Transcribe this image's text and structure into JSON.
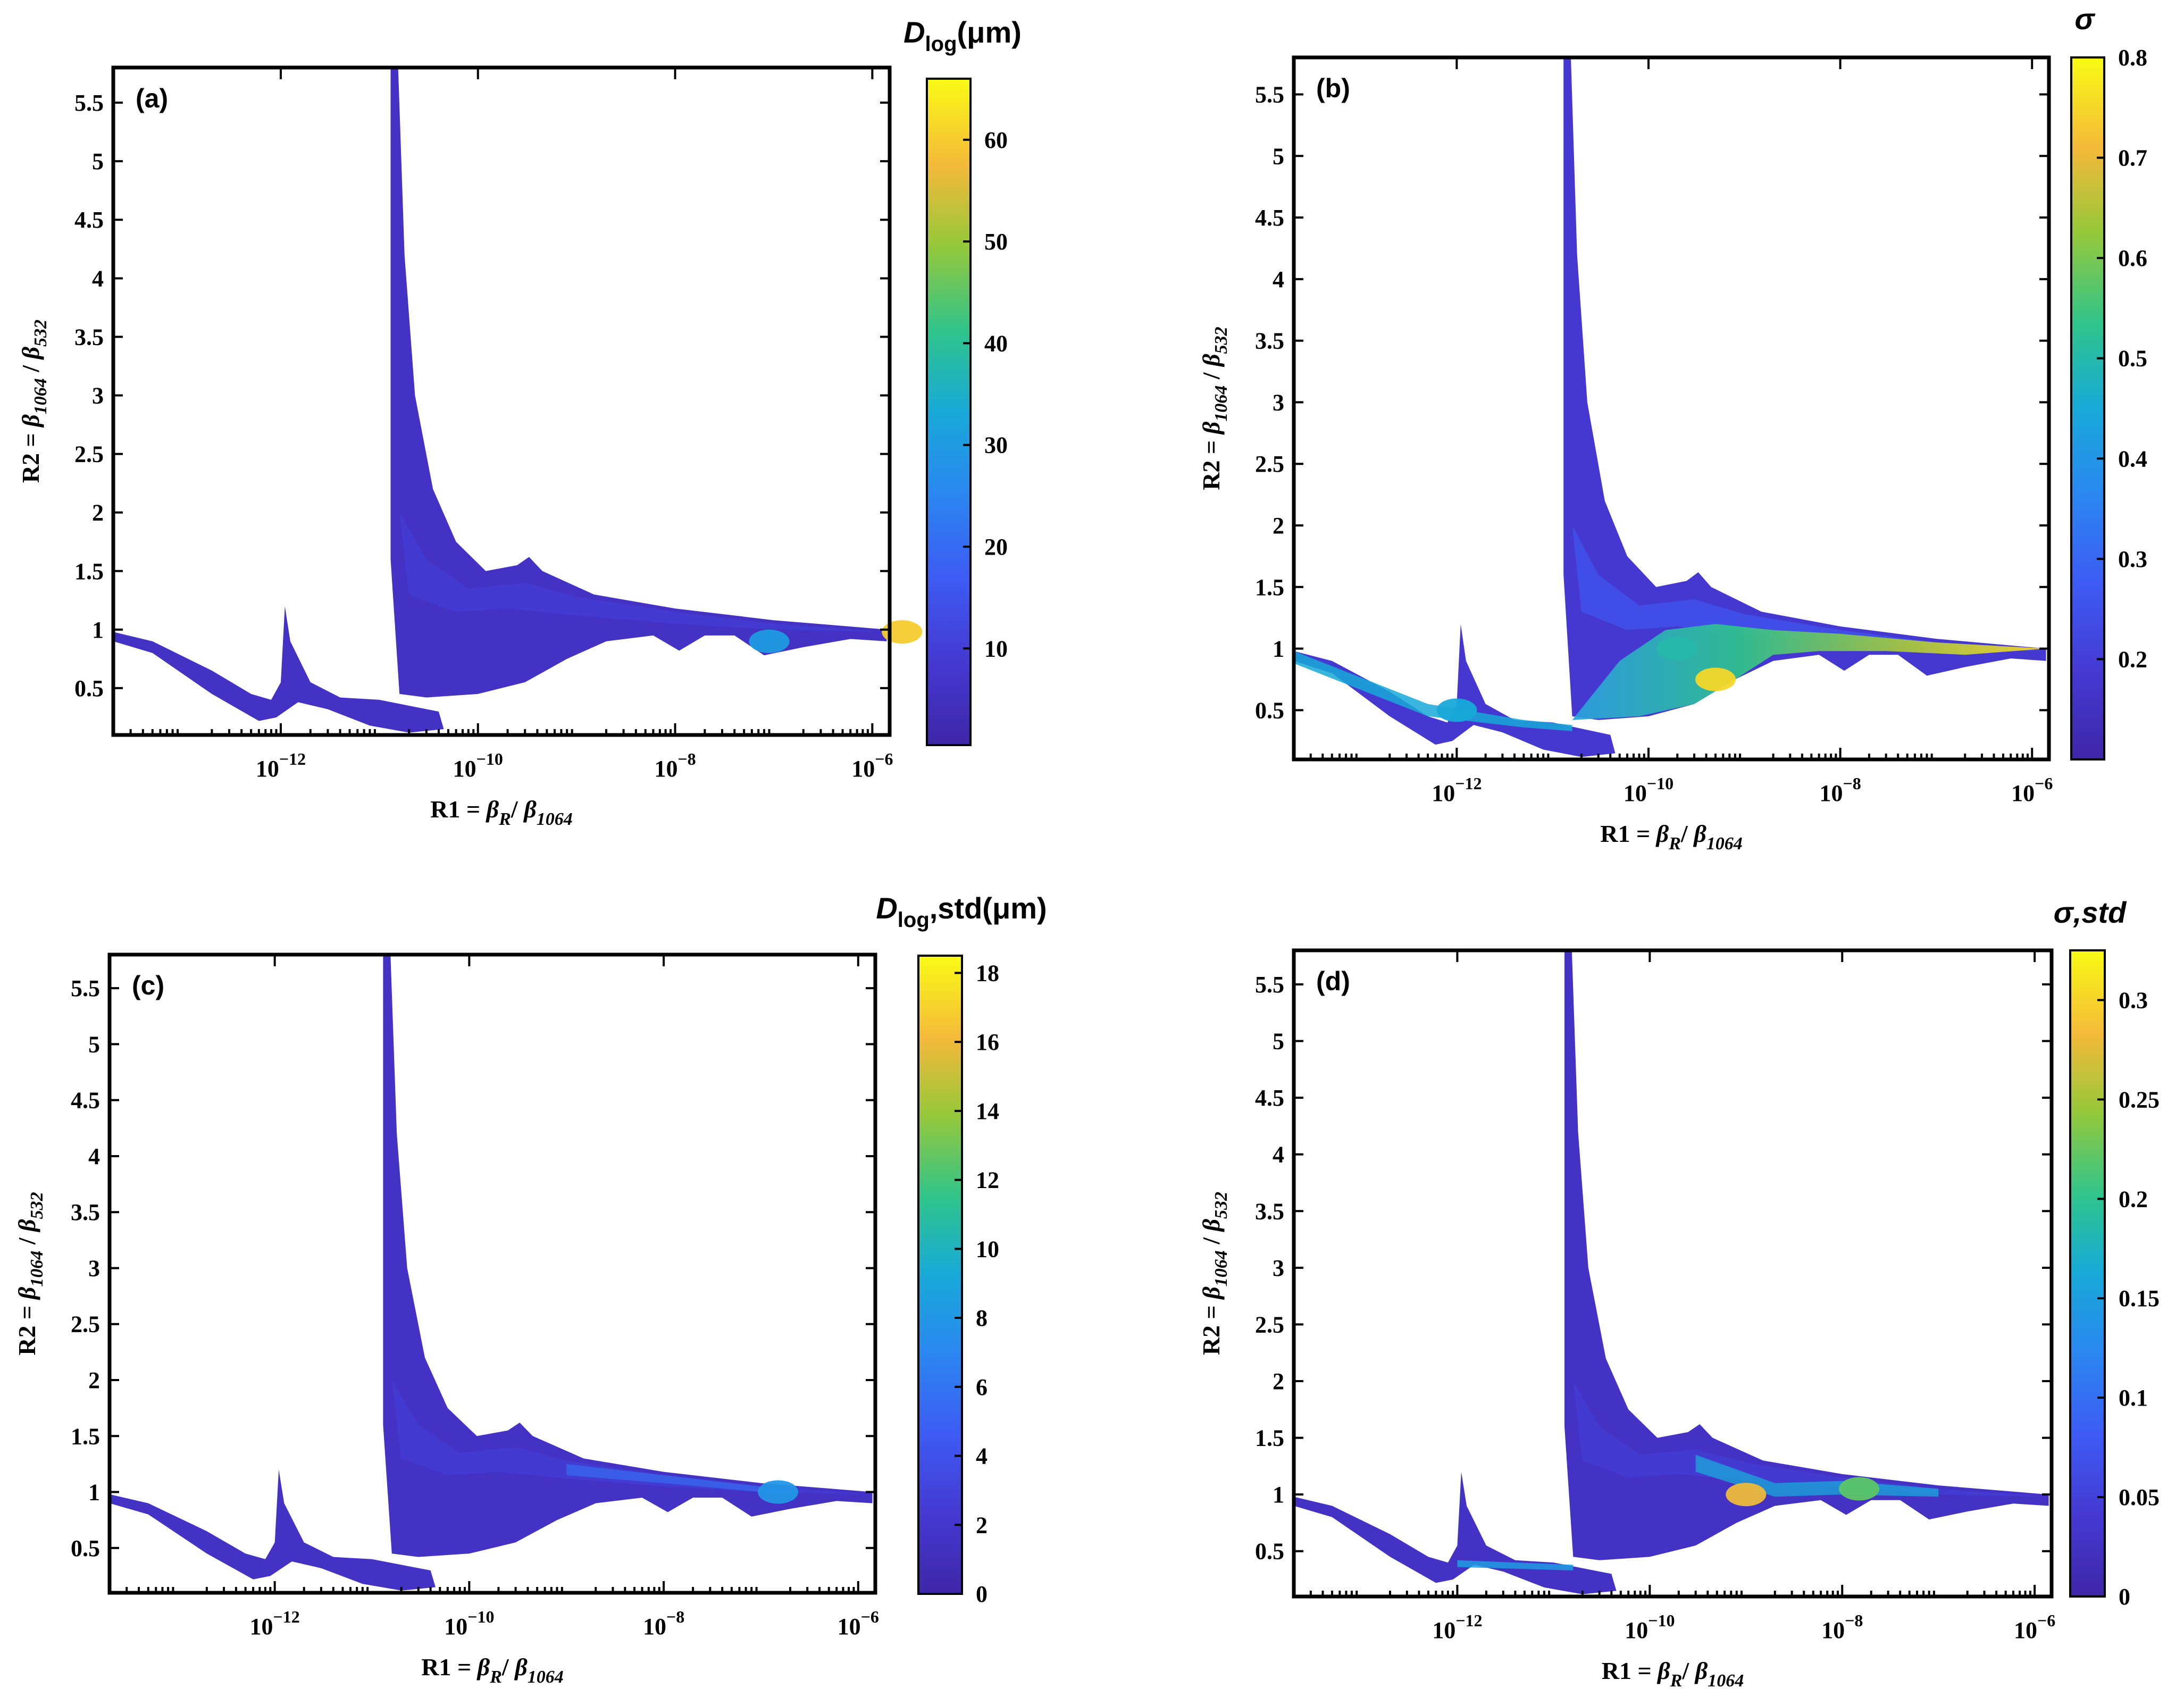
{
  "colors": {
    "viridis_low": "#3e26a8",
    "viridis_mid": "#2a8ef0",
    "viridis_green": "#2fc48c",
    "viridis_high": "#f9fb15",
    "frame": "#000000",
    "background": "#ffffff"
  },
  "chart_data": [
    {
      "type": "heatmap",
      "panel_label": "(a)",
      "colorbar_title": "D_log(μm)",
      "colorbar_title_main": "D",
      "colorbar_title_sub": "log",
      "colorbar_title_rest": "(μm)",
      "xlabel": "R1 = β_R / β_1064",
      "ylabel": "R2 = β_1064 / β_532",
      "x_scale": "log",
      "xlim": [
        2e-14,
        1.5e-06
      ],
      "ylim": [
        0.1,
        5.8
      ],
      "x_ticks": [
        "10^-12",
        "10^-10",
        "10^-8",
        "10^-6"
      ],
      "y_ticks": [
        "0.5",
        "1",
        "1.5",
        "2",
        "2.5",
        "3",
        "3.5",
        "4",
        "4.5",
        "5",
        "5.5"
      ],
      "colorbar_range": [
        0.5,
        66
      ],
      "colorbar_ticks": [
        "10",
        "20",
        "30",
        "40",
        "50",
        "60"
      ],
      "highlights": [
        {
          "x": 2e-06,
          "y": 0.98,
          "value": 60
        },
        {
          "x": 9e-08,
          "y": 0.9,
          "value": 30
        }
      ]
    },
    {
      "type": "heatmap",
      "panel_label": "(b)",
      "colorbar_title": "σ",
      "colorbar_title_main": "σ",
      "colorbar_title_sub": "",
      "colorbar_title_rest": "",
      "xlabel": "R1 = β_R / β_1064",
      "ylabel": "R2 = β_1064 / β_532",
      "x_scale": "log",
      "xlim": [
        2e-14,
        1.5e-06
      ],
      "ylim": [
        0.1,
        5.8
      ],
      "x_ticks": [
        "10^-12",
        "10^-10",
        "10^-8",
        "10^-6"
      ],
      "y_ticks": [
        "0.5",
        "1",
        "1.5",
        "2",
        "2.5",
        "3",
        "3.5",
        "4",
        "4.5",
        "5",
        "5.5"
      ],
      "colorbar_range": [
        0.1,
        0.8
      ],
      "colorbar_ticks": [
        "0.2",
        "0.3",
        "0.4",
        "0.5",
        "0.6",
        "0.7",
        "0.8"
      ],
      "highlights": [
        {
          "x": 5e-10,
          "y": 0.75,
          "value": 0.75
        },
        {
          "x": 2e-10,
          "y": 1.0,
          "value": 0.5
        },
        {
          "x": 1e-12,
          "y": 0.5,
          "value": 0.45
        }
      ]
    },
    {
      "type": "heatmap",
      "panel_label": "(c)",
      "colorbar_title": "D_log,std(μm)",
      "colorbar_title_main": "D",
      "colorbar_title_sub": "log",
      "colorbar_title_rest": ",std(μm)",
      "xlabel": "R1 = β_R / β_1064",
      "ylabel": "R2 = β_1064 / β_532",
      "x_scale": "log",
      "xlim": [
        2e-14,
        1.5e-06
      ],
      "ylim": [
        0.1,
        5.8
      ],
      "x_ticks": [
        "10^-12",
        "10^-10",
        "10^-8",
        "10^-6"
      ],
      "y_ticks": [
        "0.5",
        "1",
        "1.5",
        "2",
        "2.5",
        "3",
        "3.5",
        "4",
        "4.5",
        "5",
        "5.5"
      ],
      "colorbar_range": [
        0,
        18.5
      ],
      "colorbar_ticks": [
        "0",
        "2",
        "4",
        "6",
        "8",
        "10",
        "12",
        "14",
        "16",
        "18"
      ],
      "highlights": [
        {
          "x": 1.5e-07,
          "y": 1.0,
          "value": 8
        }
      ]
    },
    {
      "type": "heatmap",
      "panel_label": "(d)",
      "colorbar_title": "σ,std",
      "colorbar_title_main": "σ,std",
      "colorbar_title_sub": "",
      "colorbar_title_rest": "",
      "xlabel": "R1 = β_R / β_1064",
      "ylabel": "R2 = β_1064 / β_532",
      "x_scale": "log",
      "xlim": [
        2e-14,
        1.5e-06
      ],
      "ylim": [
        0.1,
        5.8
      ],
      "x_ticks": [
        "10^-12",
        "10^-10",
        "10^-8",
        "10^-6"
      ],
      "y_ticks": [
        "0.5",
        "1",
        "1.5",
        "2",
        "2.5",
        "3",
        "3.5",
        "4",
        "4.5",
        "5",
        "5.5"
      ],
      "colorbar_range": [
        0,
        0.325
      ],
      "colorbar_ticks": [
        "0",
        "0.05",
        "0.1",
        "0.15",
        "0.2",
        "0.25",
        "0.3"
      ],
      "highlights": [
        {
          "x": 1e-09,
          "y": 1.0,
          "value": 0.28
        },
        {
          "x": 1.5e-08,
          "y": 1.05,
          "value": 0.22
        }
      ]
    }
  ]
}
